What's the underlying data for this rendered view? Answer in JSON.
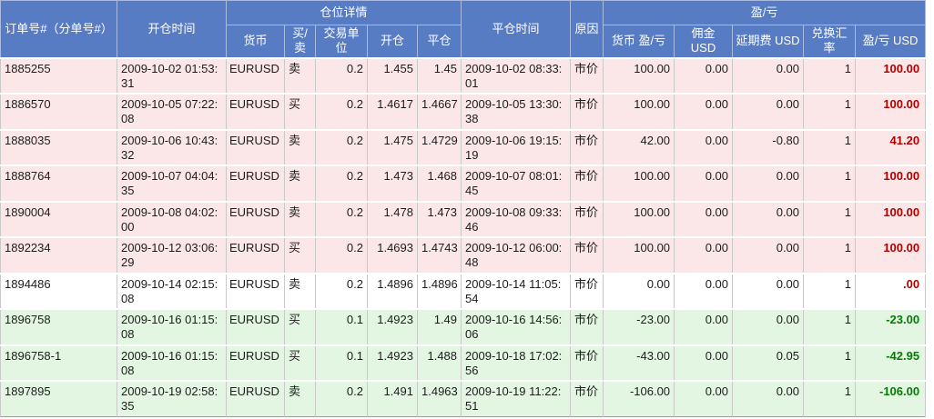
{
  "table": {
    "header": {
      "order_id": "订单号#（分单号#）",
      "open_time": "开仓时间",
      "position_details_group": "仓位详情",
      "currency": "货币",
      "buy_sell": "买/卖",
      "trade_unit": "交易单位",
      "open_price": "开仓",
      "close_price": "平仓",
      "close_time": "平仓时间",
      "reason": "原因",
      "pl_group": "盈/亏",
      "currency_pl": "货币 盈/亏",
      "commission_usd": "佣金 USD",
      "rollover_usd": "延期费 USD",
      "exchange_rate": "兑换汇率",
      "pl_usd": "盈/亏 USD"
    },
    "rows": [
      {
        "order_id": "1885255",
        "open_time": "2009-10-02 01:53:31",
        "currency": "EURUSD",
        "buy_sell": "卖",
        "trade_unit": "0.2",
        "open_price": "1.455",
        "close_price": "1.45",
        "close_time": "2009-10-02 08:33:01",
        "reason": "市价",
        "currency_pl": "100.00",
        "commission_usd": "0.00",
        "rollover_usd": "0.00",
        "exchange_rate": "1",
        "pl_usd": "100.00",
        "tone": "pink",
        "pl_color": "red"
      },
      {
        "order_id": "1886570",
        "open_time": "2009-10-05 07:22:08",
        "currency": "EURUSD",
        "buy_sell": "买",
        "trade_unit": "0.2",
        "open_price": "1.4617",
        "close_price": "1.4667",
        "close_time": "2009-10-05 13:30:38",
        "reason": "市价",
        "currency_pl": "100.00",
        "commission_usd": "0.00",
        "rollover_usd": "0.00",
        "exchange_rate": "1",
        "pl_usd": "100.00",
        "tone": "pink",
        "pl_color": "red"
      },
      {
        "order_id": "1888035",
        "open_time": "2009-10-06 10:43:32",
        "currency": "EURUSD",
        "buy_sell": "卖",
        "trade_unit": "0.2",
        "open_price": "1.475",
        "close_price": "1.4729",
        "close_time": "2009-10-06 19:15:19",
        "reason": "市价",
        "currency_pl": "42.00",
        "commission_usd": "0.00",
        "rollover_usd": "-0.80",
        "exchange_rate": "1",
        "pl_usd": "41.20",
        "tone": "pink",
        "pl_color": "red"
      },
      {
        "order_id": "1888764",
        "open_time": "2009-10-07 04:04:35",
        "currency": "EURUSD",
        "buy_sell": "卖",
        "trade_unit": "0.2",
        "open_price": "1.473",
        "close_price": "1.468",
        "close_time": "2009-10-07 08:01:45",
        "reason": "市价",
        "currency_pl": "100.00",
        "commission_usd": "0.00",
        "rollover_usd": "0.00",
        "exchange_rate": "1",
        "pl_usd": "100.00",
        "tone": "pink",
        "pl_color": "red"
      },
      {
        "order_id": "1890004",
        "open_time": "2009-10-08 04:02:00",
        "currency": "EURUSD",
        "buy_sell": "卖",
        "trade_unit": "0.2",
        "open_price": "1.478",
        "close_price": "1.473",
        "close_time": "2009-10-08 09:33:46",
        "reason": "市价",
        "currency_pl": "100.00",
        "commission_usd": "0.00",
        "rollover_usd": "0.00",
        "exchange_rate": "1",
        "pl_usd": "100.00",
        "tone": "pink",
        "pl_color": "red"
      },
      {
        "order_id": "1892234",
        "open_time": "2009-10-12 03:06:29",
        "currency": "EURUSD",
        "buy_sell": "买",
        "trade_unit": "0.2",
        "open_price": "1.4693",
        "close_price": "1.4743",
        "close_time": "2009-10-12 06:00:48",
        "reason": "市价",
        "currency_pl": "100.00",
        "commission_usd": "0.00",
        "rollover_usd": "0.00",
        "exchange_rate": "1",
        "pl_usd": "100.00",
        "tone": "pink",
        "pl_color": "red"
      },
      {
        "order_id": "1894486",
        "open_time": "2009-10-14 02:15:08",
        "currency": "EURUSD",
        "buy_sell": "卖",
        "trade_unit": "0.2",
        "open_price": "1.4896",
        "close_price": "1.4896",
        "close_time": "2009-10-14 11:05:54",
        "reason": "市价",
        "currency_pl": "0.00",
        "commission_usd": "0.00",
        "rollover_usd": "0.00",
        "exchange_rate": "1",
        "pl_usd": ".00",
        "tone": "white",
        "pl_color": "red"
      },
      {
        "order_id": "1896758",
        "open_time": "2009-10-16 01:15:08",
        "currency": "EURUSD",
        "buy_sell": "买",
        "trade_unit": "0.1",
        "open_price": "1.4923",
        "close_price": "1.49",
        "close_time": "2009-10-16 14:56:06",
        "reason": "市价",
        "currency_pl": "-23.00",
        "commission_usd": "0.00",
        "rollover_usd": "0.00",
        "exchange_rate": "1",
        "pl_usd": "-23.00",
        "tone": "green",
        "pl_color": "green"
      },
      {
        "order_id": "1896758-1",
        "open_time": "2009-10-16 01:15:08",
        "currency": "EURUSD",
        "buy_sell": "买",
        "trade_unit": "0.1",
        "open_price": "1.4923",
        "close_price": "1.488",
        "close_time": "2009-10-18 17:02:56",
        "reason": "市价",
        "currency_pl": "-43.00",
        "commission_usd": "0.00",
        "rollover_usd": "0.05",
        "exchange_rate": "1",
        "pl_usd": "-42.95",
        "tone": "green",
        "pl_color": "green"
      },
      {
        "order_id": "1897895",
        "open_time": "2009-10-19 02:58:35",
        "currency": "EURUSD",
        "buy_sell": "卖",
        "trade_unit": "0.2",
        "open_price": "1.491",
        "close_price": "1.4963",
        "close_time": "2009-10-19 11:22:51",
        "reason": "市价",
        "currency_pl": "-106.00",
        "commission_usd": "0.00",
        "rollover_usd": "0.00",
        "exchange_rate": "1",
        "pl_usd": "-106.00",
        "tone": "green",
        "pl_color": "green"
      }
    ],
    "colors": {
      "header_bg": "#587CC4",
      "header_text": "#FFFFFF",
      "row_pink": "#FBE7E7",
      "row_white": "#FFFFFF",
      "row_green": "#E2F6E2",
      "profit_text": "#B00000",
      "loss_text": "#067A06",
      "body_text": "#1C1C1C"
    }
  }
}
